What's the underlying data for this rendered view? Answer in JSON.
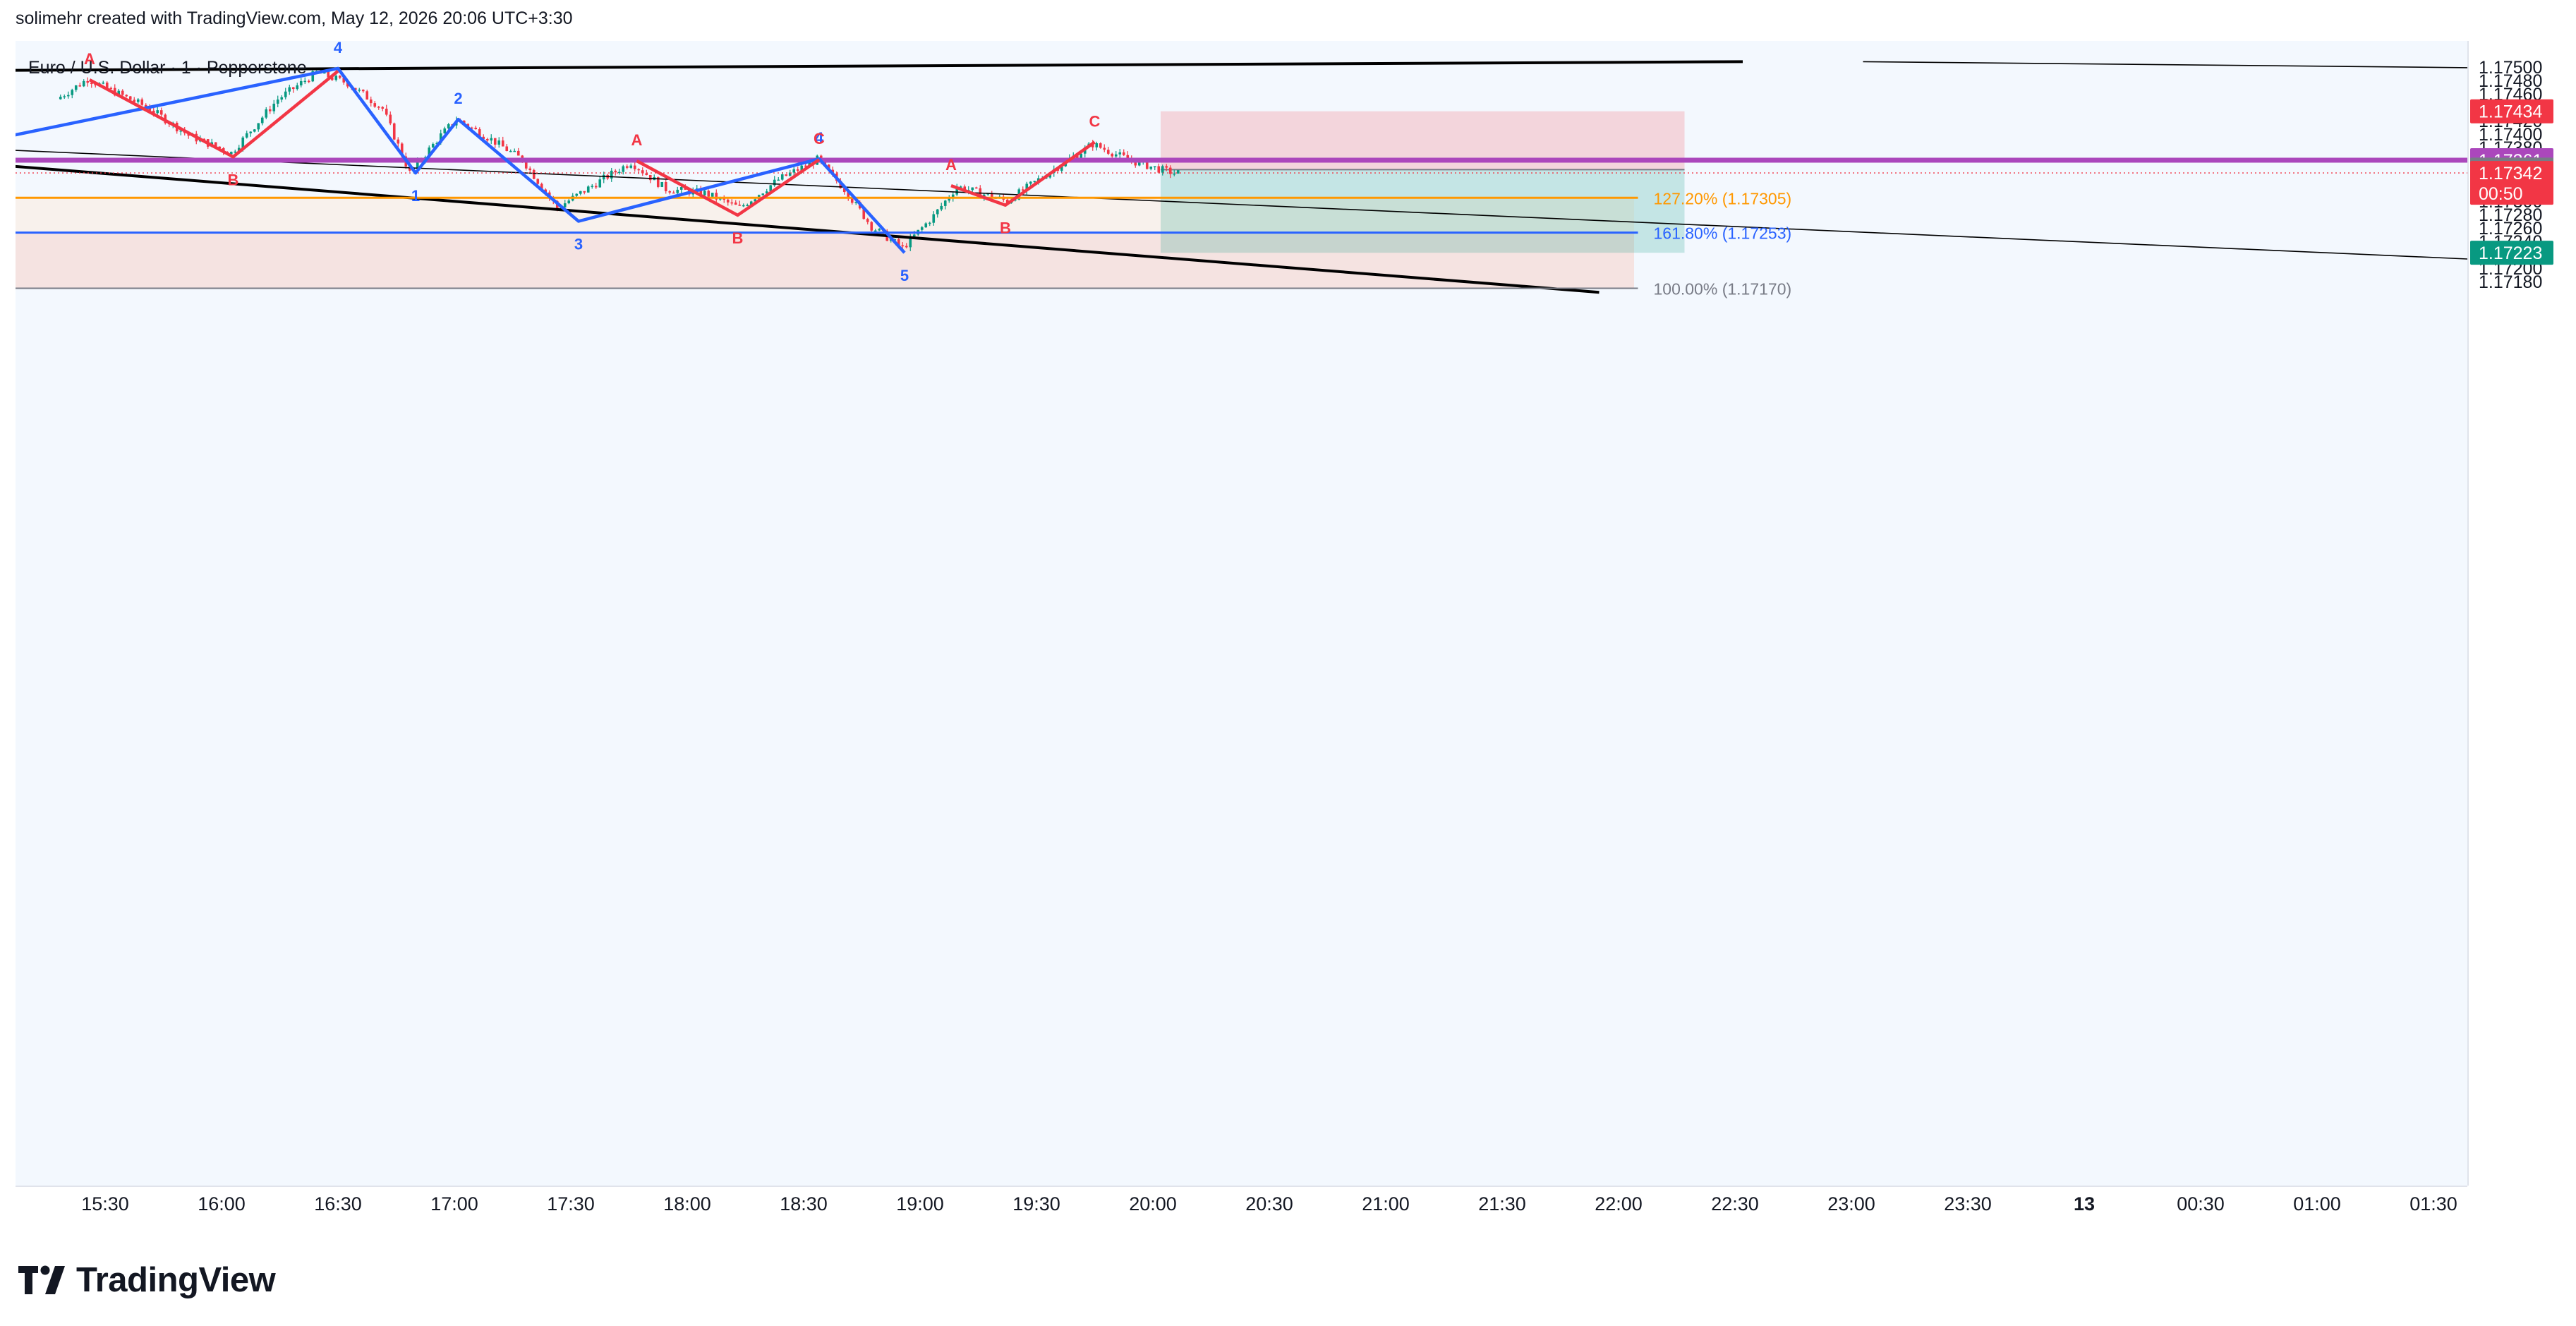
{
  "header": {
    "credit": "solimehr created with TradingView.com, May 12, 2026 20:06 UTC+3:30"
  },
  "brand": {
    "name": "TradingView"
  },
  "chart_data": {
    "type": "candlestick",
    "symbol_label": "Euro / U.S. Dollar · 1 · Pepperstone",
    "ylim": [
      1.17165,
      1.17505
    ],
    "y_ticks": [
      1.175,
      1.1748,
      1.1746,
      1.1744,
      1.1742,
      1.174,
      1.1738,
      1.1736,
      1.1734,
      1.1732,
      1.173,
      1.1728,
      1.1726,
      1.1724,
      1.1722,
      1.172,
      1.1718
    ],
    "x_ticks": [
      {
        "label": "15:30",
        "t": "15:30"
      },
      {
        "label": "16:00",
        "t": "16:00"
      },
      {
        "label": "16:30",
        "t": "16:30"
      },
      {
        "label": "17:00",
        "t": "17:00"
      },
      {
        "label": "17:30",
        "t": "17:30"
      },
      {
        "label": "18:00",
        "t": "18:00"
      },
      {
        "label": "18:30",
        "t": "18:30"
      },
      {
        "label": "19:00",
        "t": "19:00"
      },
      {
        "label": "19:30",
        "t": "19:30"
      },
      {
        "label": "20:00",
        "t": "20:00"
      },
      {
        "label": "20:30",
        "t": "20:30"
      },
      {
        "label": "21:00",
        "t": "21:00"
      },
      {
        "label": "21:30",
        "t": "21:30"
      },
      {
        "label": "22:00",
        "t": "22:00"
      },
      {
        "label": "22:30",
        "t": "22:30"
      },
      {
        "label": "23:00",
        "t": "23:00"
      },
      {
        "label": "23:30",
        "t": "23:30"
      },
      {
        "label": "13",
        "t": "24:00",
        "bold": true
      },
      {
        "label": "00:30",
        "t": "24:30"
      },
      {
        "label": "01:00",
        "t": "25:00"
      },
      {
        "label": "01:30",
        "t": "25:30"
      }
    ],
    "price_path": [
      {
        "t": "15:18",
        "p": 1.17452
      },
      {
        "t": "15:26",
        "p": 1.17482
      },
      {
        "t": "15:42",
        "p": 1.17438
      },
      {
        "t": "15:52",
        "p": 1.17398
      },
      {
        "t": "16:03",
        "p": 1.17372
      },
      {
        "t": "16:15",
        "p": 1.17452
      },
      {
        "t": "16:25",
        "p": 1.17492
      },
      {
        "t": "16:33",
        "p": 1.17476
      },
      {
        "t": "16:42",
        "p": 1.17438
      },
      {
        "t": "16:49",
        "p": 1.17342
      },
      {
        "t": "16:57",
        "p": 1.17398
      },
      {
        "t": "17:01",
        "p": 1.17422
      },
      {
        "t": "17:10",
        "p": 1.17392
      },
      {
        "t": "17:18",
        "p": 1.17362
      },
      {
        "t": "17:27",
        "p": 1.1729
      },
      {
        "t": "17:38",
        "p": 1.1733
      },
      {
        "t": "17:46",
        "p": 1.17358
      },
      {
        "t": "17:55",
        "p": 1.17318
      },
      {
        "t": "18:05",
        "p": 1.17312
      },
      {
        "t": "18:14",
        "p": 1.1729
      },
      {
        "t": "18:24",
        "p": 1.17332
      },
      {
        "t": "18:34",
        "p": 1.17362
      },
      {
        "t": "18:41",
        "p": 1.17318
      },
      {
        "t": "18:48",
        "p": 1.17262
      },
      {
        "t": "18:56",
        "p": 1.1723
      },
      {
        "t": "19:04",
        "p": 1.17278
      },
      {
        "t": "19:10",
        "p": 1.17322
      },
      {
        "t": "19:23",
        "p": 1.173
      },
      {
        "t": "19:33",
        "p": 1.1734
      },
      {
        "t": "19:45",
        "p": 1.17385
      },
      {
        "t": "19:55",
        "p": 1.1736
      },
      {
        "t": "20:02",
        "p": 1.17348
      },
      {
        "t": "20:06",
        "p": 1.17342
      }
    ],
    "horizontal_levels": [
      {
        "name": "resistance",
        "price": 1.17361,
        "color": "#ab47bc"
      },
      {
        "name": "fib-127",
        "price": 1.17305,
        "color": "#ff9800",
        "label": "127.20% (1.17305)"
      },
      {
        "name": "fib-161",
        "price": 1.17253,
        "color": "#2962ff",
        "label": "161.80% (1.17253)"
      },
      {
        "name": "fib-100",
        "price": 1.1717,
        "color": "#787b86",
        "label": "100.00% (1.17170)"
      }
    ],
    "trendlines": [
      {
        "name": "channel-top",
        "color": "#000000",
        "points": [
          {
            "t": "15:02",
            "p": 1.17495
          },
          {
            "t": "22:32",
            "p": 1.17508
          }
        ]
      },
      {
        "name": "upper-wedge",
        "color": "#000000",
        "points": [
          {
            "t": "23:03",
            "p": 1.17508
          },
          {
            "t": "25:57",
            "p": 1.17498
          }
        ]
      },
      {
        "name": "channel-bottom",
        "color": "#000000",
        "points": [
          {
            "t": "15:02",
            "p": 1.17354
          },
          {
            "t": "21:55",
            "p": 1.17164
          }
        ]
      },
      {
        "name": "diagonal-thin",
        "color": "#000000",
        "points": [
          {
            "t": "15:02",
            "p": 1.17377
          },
          {
            "t": "25:57",
            "p": 1.17209
          }
        ]
      }
    ],
    "waves_blue": [
      {
        "label": "",
        "t": "15:02",
        "p": 1.17393
      },
      {
        "label": "4",
        "t": "16:30",
        "p": 1.17498
      },
      {
        "label": "1",
        "t": "16:50",
        "p": 1.17342
      },
      {
        "label": "2",
        "t": "17:01",
        "p": 1.17422
      },
      {
        "label": "3",
        "t": "17:32",
        "p": 1.1727
      },
      {
        "label": "4",
        "t": "18:34",
        "p": 1.17363
      },
      {
        "label": "5",
        "t": "18:56",
        "p": 1.17223
      }
    ],
    "waves_red": [
      {
        "label": "A",
        "t": "15:26",
        "p": 1.17481
      },
      {
        "label": "B",
        "t": "16:03",
        "p": 1.17366
      },
      {
        "label": "",
        "t": "16:30",
        "p": 1.17494
      },
      {
        "label": "A",
        "t": "17:47",
        "p": 1.1736
      },
      {
        "label": "B",
        "t": "18:13",
        "p": 1.17279
      },
      {
        "label": "C",
        "t": "18:34",
        "p": 1.17362
      },
      {
        "label": "A",
        "t": "19:08",
        "p": 1.17323
      },
      {
        "label": "B",
        "t": "19:22",
        "p": 1.17294
      },
      {
        "label": "C",
        "t": "19:45",
        "p": 1.17388
      }
    ],
    "position": {
      "type": "short",
      "entry": 1.17347,
      "stop": 1.17434,
      "target": 1.17223,
      "t_start": "20:02",
      "t_end": "22:17"
    },
    "price_labels": [
      {
        "name": "stop-tag",
        "price": 1.17434,
        "text": "1.17434",
        "bg": "#f23645"
      },
      {
        "name": "level-tag",
        "price": 1.17361,
        "text": "1.17361",
        "bg": "#ab47bc"
      },
      {
        "name": "entry-tag",
        "price": 1.17347,
        "text": "1.17347",
        "bg": "#787b86"
      },
      {
        "name": "current-tag",
        "price": 1.17342,
        "text": "1.17342",
        "sub": "00:50",
        "bg": "#f23645"
      },
      {
        "name": "target-tag",
        "price": 1.17223,
        "text": "1.17223",
        "bg": "#089981"
      }
    ],
    "colors": {
      "up": "#089981",
      "down": "#f23645",
      "wave_blue": "#2962ff",
      "wave_red": "#f23645"
    }
  }
}
